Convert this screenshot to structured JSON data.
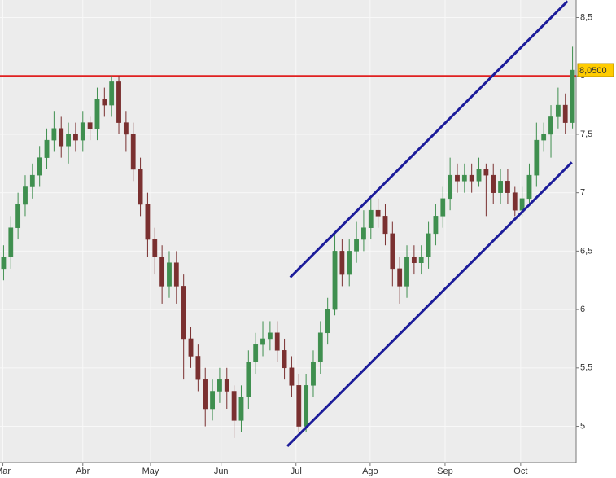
{
  "chart_data": {
    "type": "candlestick",
    "xlim": [
      0,
      80
    ],
    "xticks": [
      {
        "value": 0.4,
        "label": "Mar"
      },
      {
        "value": 11.5,
        "label": "Abr"
      },
      {
        "value": 20.9,
        "label": "May"
      },
      {
        "value": 30.7,
        "label": "Jun"
      },
      {
        "value": 41.1,
        "label": "Jul"
      },
      {
        "value": 51.4,
        "label": "Ago"
      },
      {
        "value": 61.8,
        "label": "Sep"
      },
      {
        "value": 72.3,
        "label": "Oct"
      }
    ],
    "ylim": [
      4.69,
      8.65
    ],
    "yticks": [
      {
        "value": 5,
        "label": "5"
      },
      {
        "value": 5.5,
        "label": "5,5"
      },
      {
        "value": 6,
        "label": "6"
      },
      {
        "value": 6.5,
        "label": "6,5"
      },
      {
        "value": 7,
        "label": "7"
      },
      {
        "value": 7.5,
        "label": "7,5"
      },
      {
        "value": 8,
        "label": "8"
      },
      {
        "value": 8.5,
        "label": "8,5"
      }
    ],
    "grid": true,
    "up_color": "#3f8f4f",
    "down_color": "#7a3030",
    "open": [
      6.35,
      6.45,
      6.7,
      6.9,
      7.05,
      7.15,
      7.3,
      7.45,
      7.55,
      7.4,
      7.5,
      7.45,
      7.6,
      7.55,
      7.8,
      7.75,
      7.95,
      7.6,
      7.5,
      7.2,
      6.9,
      6.6,
      6.45,
      6.2,
      6.4,
      6.2,
      5.75,
      5.6,
      5.4,
      5.15,
      5.3,
      5.4,
      5.3,
      5.05,
      5.25,
      5.55,
      5.7,
      5.75,
      5.8,
      5.65,
      5.5,
      5.35,
      5.0,
      5.35,
      5.55,
      5.8,
      6.0,
      6.5,
      6.3,
      6.5,
      6.6,
      6.7,
      6.85,
      6.8,
      6.65,
      6.35,
      6.2,
      6.45,
      6.4,
      6.45,
      6.65,
      6.8,
      6.95,
      7.15,
      7.1,
      7.15,
      7.1,
      7.2,
      7.15,
      7.0,
      7.1,
      7.0,
      6.85,
      6.95,
      7.15,
      7.45,
      7.5,
      7.65,
      7.75,
      7.6
    ],
    "high": [
      6.55,
      6.8,
      7.0,
      7.15,
      7.25,
      7.4,
      7.55,
      7.7,
      7.65,
      7.6,
      7.6,
      7.7,
      7.65,
      7.9,
      7.9,
      8.0,
      8.0,
      7.7,
      7.6,
      7.3,
      7.0,
      6.7,
      6.55,
      6.5,
      6.5,
      6.3,
      5.85,
      5.7,
      5.5,
      5.4,
      5.5,
      5.5,
      5.35,
      5.35,
      5.65,
      5.8,
      5.9,
      5.9,
      5.9,
      5.75,
      5.6,
      5.45,
      5.45,
      5.65,
      5.9,
      6.1,
      6.65,
      6.6,
      6.6,
      6.75,
      6.85,
      6.95,
      6.95,
      6.9,
      6.75,
      6.45,
      6.55,
      6.55,
      6.55,
      6.75,
      6.9,
      7.05,
      7.3,
      7.25,
      7.25,
      7.25,
      7.3,
      7.25,
      7.25,
      7.2,
      7.2,
      7.05,
      7.05,
      7.25,
      7.6,
      7.6,
      7.75,
      7.9,
      7.85,
      8.25
    ],
    "low": [
      6.25,
      6.35,
      6.6,
      6.8,
      6.95,
      7.05,
      7.2,
      7.35,
      7.3,
      7.25,
      7.35,
      7.35,
      7.45,
      7.45,
      7.65,
      7.65,
      7.5,
      7.35,
      7.1,
      6.8,
      6.45,
      6.3,
      6.05,
      6.1,
      6.05,
      5.4,
      5.5,
      5.3,
      5.0,
      5.05,
      5.2,
      5.15,
      4.9,
      4.95,
      5.15,
      5.45,
      5.6,
      5.65,
      5.55,
      5.4,
      5.25,
      4.95,
      4.95,
      5.25,
      5.45,
      5.7,
      5.95,
      6.2,
      6.2,
      6.4,
      6.5,
      6.6,
      6.7,
      6.55,
      6.2,
      6.05,
      6.1,
      6.3,
      6.3,
      6.35,
      6.55,
      6.7,
      6.85,
      7.0,
      7.0,
      7.0,
      7.05,
      6.8,
      6.9,
      6.9,
      6.9,
      6.8,
      6.8,
      6.9,
      7.05,
      7.35,
      7.3,
      7.55,
      7.5,
      7.55
    ],
    "close": [
      6.45,
      6.7,
      6.9,
      7.05,
      7.15,
      7.3,
      7.45,
      7.55,
      7.4,
      7.5,
      7.45,
      7.6,
      7.55,
      7.8,
      7.75,
      7.95,
      7.6,
      7.5,
      7.2,
      6.9,
      6.6,
      6.45,
      6.2,
      6.4,
      6.2,
      5.75,
      5.6,
      5.4,
      5.15,
      5.3,
      5.4,
      5.3,
      5.05,
      5.25,
      5.55,
      5.7,
      5.75,
      5.8,
      5.65,
      5.5,
      5.35,
      5.0,
      5.35,
      5.55,
      5.8,
      6.0,
      6.5,
      6.3,
      6.5,
      6.6,
      6.7,
      6.85,
      6.8,
      6.65,
      6.35,
      6.2,
      6.45,
      6.4,
      6.45,
      6.65,
      6.8,
      6.95,
      7.15,
      7.1,
      7.15,
      7.1,
      7.2,
      7.15,
      7.0,
      7.1,
      7.0,
      6.85,
      6.95,
      7.15,
      7.45,
      7.5,
      7.65,
      7.75,
      7.6,
      8.05
    ],
    "lines": [
      {
        "x": [
          40.3,
          78.8
        ],
        "y": [
          6.276,
          8.64
        ],
        "color": "#1c1c9a"
      },
      {
        "x": [
          39.9,
          79.4
        ],
        "y": [
          4.83,
          7.26
        ],
        "color": "#1c1c9a"
      }
    ],
    "hline": {
      "value": 8.0,
      "color": "#e02020"
    },
    "last_price": {
      "value": 8.05,
      "label": "8,0500"
    }
  }
}
